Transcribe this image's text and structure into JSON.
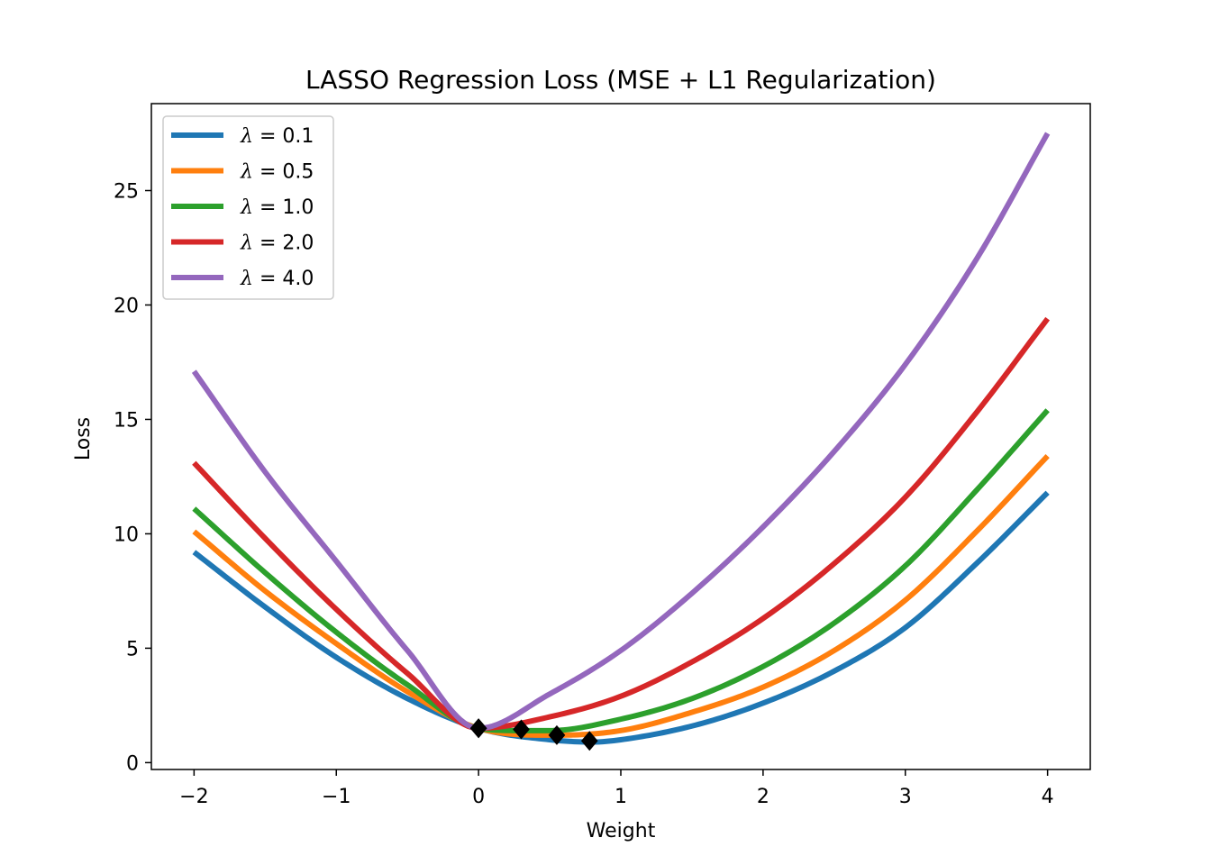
{
  "chart_data": {
    "type": "line",
    "title": "LASSO Regression Loss (MSE + L1 Regularization)",
    "xlabel": "Weight",
    "ylabel": "Loss",
    "xlim": [
      -2.3,
      4.3
    ],
    "ylim": [
      -0.3,
      28.8
    ],
    "xticks": [
      -2,
      -1,
      0,
      1,
      2,
      3,
      4
    ],
    "xtick_labels": [
      "−2",
      "−1",
      "0",
      "1",
      "2",
      "3",
      "4"
    ],
    "yticks": [
      0,
      5,
      10,
      15,
      20,
      25
    ],
    "ytick_labels": [
      "0",
      "5",
      "10",
      "15",
      "20",
      "25"
    ],
    "grid": false,
    "legend_position": "top-left",
    "x_range": [
      -2,
      4
    ],
    "series": [
      {
        "name": "λ = 0.1",
        "lambda_label": "λ",
        "value_label": "0.1",
        "lambda": 0.1,
        "color": "#1f77b4",
        "x": [
          -2,
          -1.5,
          -1,
          -0.5,
          0,
          0.5,
          0.8,
          1,
          1.5,
          2,
          2.5,
          3,
          3.5,
          4
        ],
        "y": [
          9.2,
          6.8,
          4.6,
          2.8,
          1.5,
          1.0,
          0.9,
          1.0,
          1.6,
          2.6,
          4.0,
          5.9,
          8.7,
          11.8
        ]
      },
      {
        "name": "λ = 0.5",
        "lambda_label": "λ",
        "value_label": "0.5",
        "lambda": 0.5,
        "color": "#ff7f0e",
        "x": [
          -2,
          -1.5,
          -1,
          -0.5,
          0,
          0.5,
          0.55,
          1,
          1.5,
          2,
          2.5,
          3,
          3.5,
          4
        ],
        "y": [
          10.1,
          7.5,
          5.2,
          3.1,
          1.5,
          1.2,
          1.2,
          1.4,
          2.2,
          3.3,
          4.9,
          7.1,
          10.1,
          13.4
        ]
      },
      {
        "name": "λ = 1.0",
        "lambda_label": "λ",
        "value_label": "1.0",
        "lambda": 1.0,
        "color": "#2ca02c",
        "x": [
          -2,
          -1.5,
          -1,
          -0.5,
          0,
          0.3,
          0.5,
          1,
          1.5,
          2,
          2.5,
          3,
          3.5,
          4
        ],
        "y": [
          11.1,
          8.3,
          5.7,
          3.4,
          1.5,
          1.4,
          1.4,
          1.9,
          2.8,
          4.2,
          6.1,
          8.6,
          11.9,
          15.4
        ]
      },
      {
        "name": "λ = 2.0",
        "lambda_label": "λ",
        "value_label": "2.0",
        "lambda": 2.0,
        "color": "#d62728",
        "x": [
          -2,
          -1.5,
          -1,
          -0.5,
          0,
          0.5,
          1,
          1.5,
          2,
          2.5,
          3,
          3.5,
          4
        ],
        "y": [
          13.1,
          9.8,
          6.7,
          3.9,
          1.5,
          2.0,
          2.9,
          4.4,
          6.3,
          8.7,
          11.6,
          15.3,
          19.4
        ]
      },
      {
        "name": "λ = 4.0",
        "lambda_label": "λ",
        "value_label": "4.0",
        "lambda": 4.0,
        "color": "#9467bd",
        "x": [
          -2,
          -1.5,
          -1,
          -0.5,
          0,
          0.5,
          1,
          1.5,
          2,
          2.5,
          3,
          3.5,
          4
        ],
        "y": [
          17.1,
          12.7,
          8.8,
          4.9,
          1.5,
          3.0,
          4.9,
          7.4,
          10.3,
          13.6,
          17.4,
          22.0,
          27.5
        ]
      }
    ],
    "minima_markers": {
      "marker": "diamond",
      "color": "#000000",
      "points": [
        {
          "x": 0.78,
          "y": 0.95
        },
        {
          "x": 0.55,
          "y": 1.2
        },
        {
          "x": 0.3,
          "y": 1.45
        },
        {
          "x": 0.0,
          "y": 1.5
        },
        {
          "x": 0.0,
          "y": 1.5
        }
      ]
    }
  }
}
